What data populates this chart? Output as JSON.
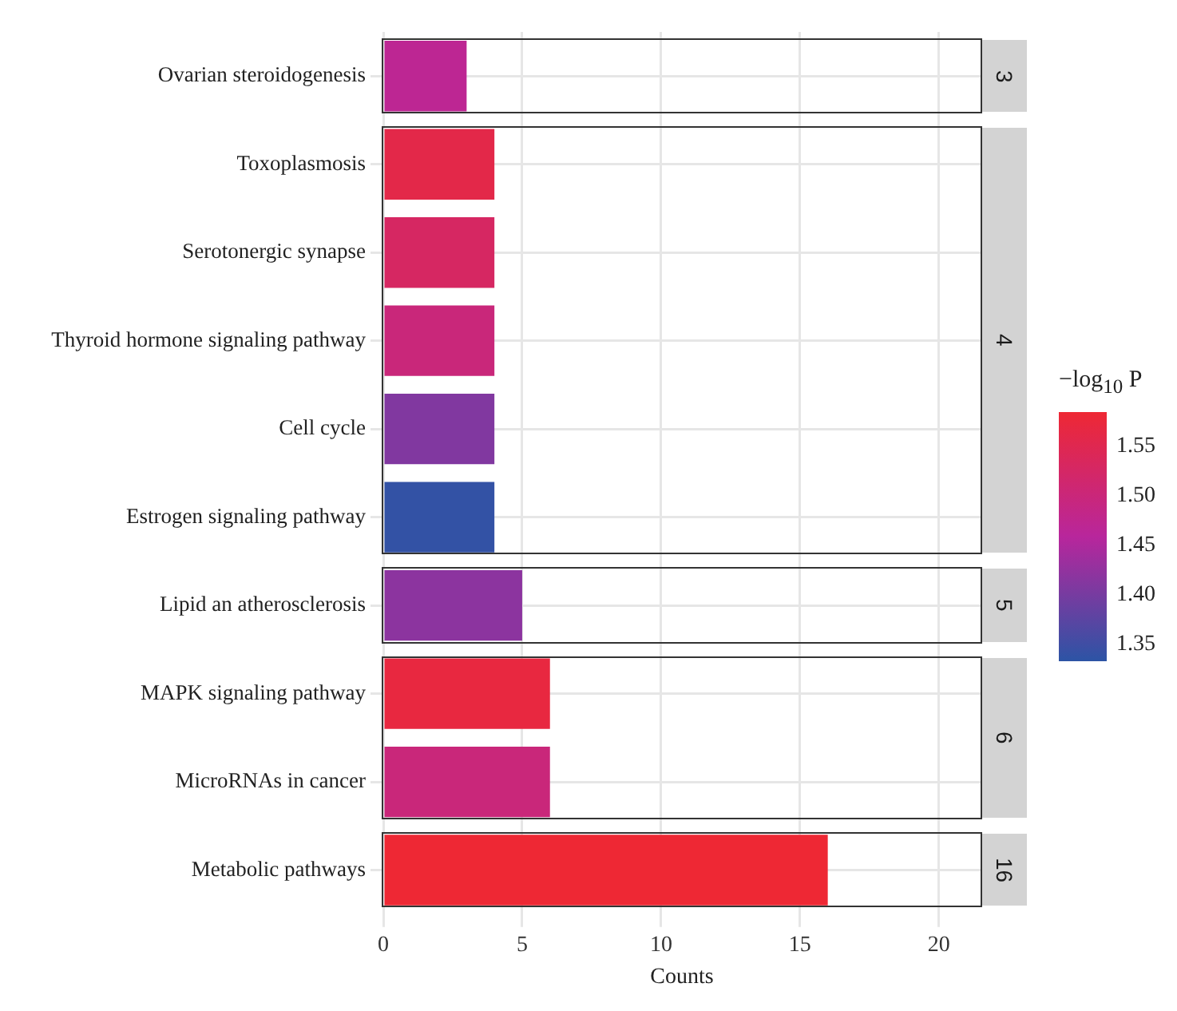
{
  "chart_data": {
    "type": "bar",
    "orientation": "horizontal",
    "categories": [
      "Ovarian steroidogenesis",
      "Toxoplasmosis",
      "Serotonergic synapse",
      "Thyroid hormone signaling pathway",
      "Cell cycle",
      "Estrogen signaling pathway",
      "Lipid an atherosclerosis",
      "MAPK signaling pathway",
      "MicroRNAs in cancer",
      "Metabolic pathways"
    ],
    "values": [
      3,
      4,
      4,
      4,
      4,
      4,
      5,
      6,
      6,
      16
    ],
    "cvalues": [
      1.47,
      1.56,
      1.53,
      1.5,
      1.41,
      1.34,
      1.42,
      1.57,
      1.5,
      1.585
    ],
    "annotations": [
      "3",
      "4",
      "5",
      "6",
      "16"
    ],
    "xlim": [
      0,
      21.5
    ],
    "xticks": [
      0,
      5,
      10,
      15,
      20
    ],
    "xlabel": "Counts",
    "grid": true,
    "clabel": "−log$_{10}$ P",
    "clim": [
      1.334,
      1.585
    ],
    "cticks": [
      {
        "value": 1.35,
        "label": "1.35"
      },
      {
        "value": 1.4,
        "label": "1.40"
      },
      {
        "value": 1.45,
        "label": "1.45"
      },
      {
        "value": 1.5,
        "label": "1.50"
      },
      {
        "value": 1.55,
        "label": "1.55"
      }
    ]
  }
}
